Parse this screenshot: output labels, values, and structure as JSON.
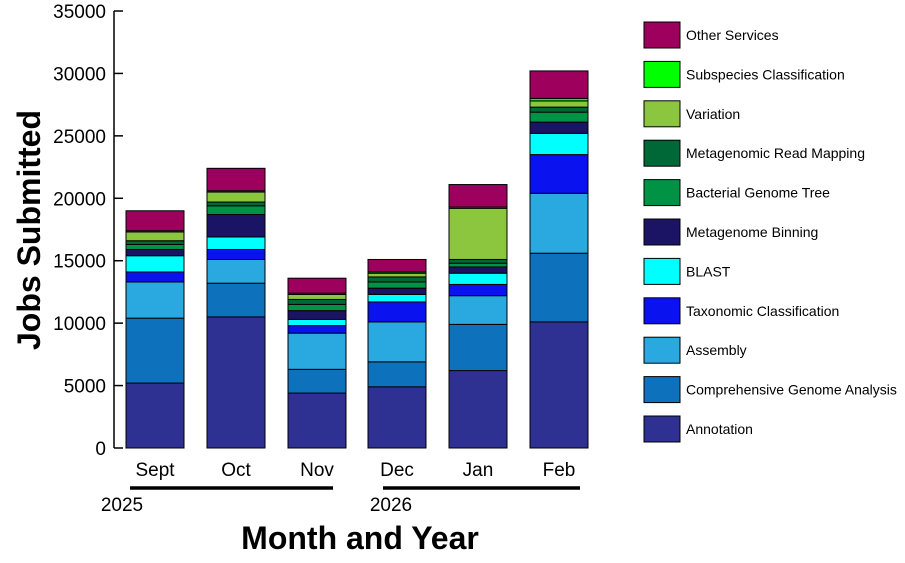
{
  "chart_data": {
    "type": "bar",
    "stacked": true,
    "title": "",
    "xlabel": "Month and Year",
    "ylabel": "Jobs Submitted",
    "ylim": [
      0,
      35000
    ],
    "yticks": [
      "0",
      "5000",
      "10000",
      "15000",
      "20000",
      "25000",
      "30000",
      "35000"
    ],
    "categories": [
      "Sept",
      "Oct",
      "Nov",
      "Dec",
      "Jan",
      "Feb"
    ],
    "year_labels": [
      "2025",
      "2026"
    ],
    "legend_position": "right",
    "series": [
      {
        "name": "Annotation",
        "color": "#2E3192",
        "values": [
          5200,
          10500,
          4400,
          4900,
          6200,
          10100
        ]
      },
      {
        "name": "Comprehensive Genome Analysis",
        "color": "#0E71BC",
        "values": [
          5200,
          2700,
          1900,
          2000,
          3700,
          5500
        ]
      },
      {
        "name": "Assembly",
        "color": "#29A9E0",
        "values": [
          2900,
          1900,
          2900,
          3200,
          2300,
          4800
        ]
      },
      {
        "name": "Taxonomic Classification",
        "color": "#0A12F0",
        "values": [
          800,
          800,
          600,
          1600,
          900,
          3100
        ]
      },
      {
        "name": "BLAST",
        "color": "#00FFFF",
        "values": [
          1300,
          1000,
          500,
          600,
          900,
          1700
        ]
      },
      {
        "name": "Metagenome Binning",
        "color": "#1B1464",
        "values": [
          500,
          1800,
          700,
          500,
          500,
          900
        ]
      },
      {
        "name": "Bacterial Genome Tree",
        "color": "#009245",
        "values": [
          400,
          700,
          500,
          500,
          300,
          800
        ]
      },
      {
        "name": "Metagenomic Read Mapping",
        "color": "#006837",
        "values": [
          300,
          300,
          400,
          400,
          300,
          400
        ]
      },
      {
        "name": "Variation",
        "color": "#8CC63F",
        "values": [
          700,
          800,
          400,
          300,
          4100,
          500
        ]
      },
      {
        "name": "Subspecies Classification",
        "color": "#00FF00",
        "values": [
          100,
          100,
          100,
          100,
          100,
          200
        ]
      },
      {
        "name": "Other Services",
        "color": "#9E005D",
        "values": [
          1600,
          1800,
          1200,
          1000,
          1800,
          2200
        ]
      }
    ]
  }
}
